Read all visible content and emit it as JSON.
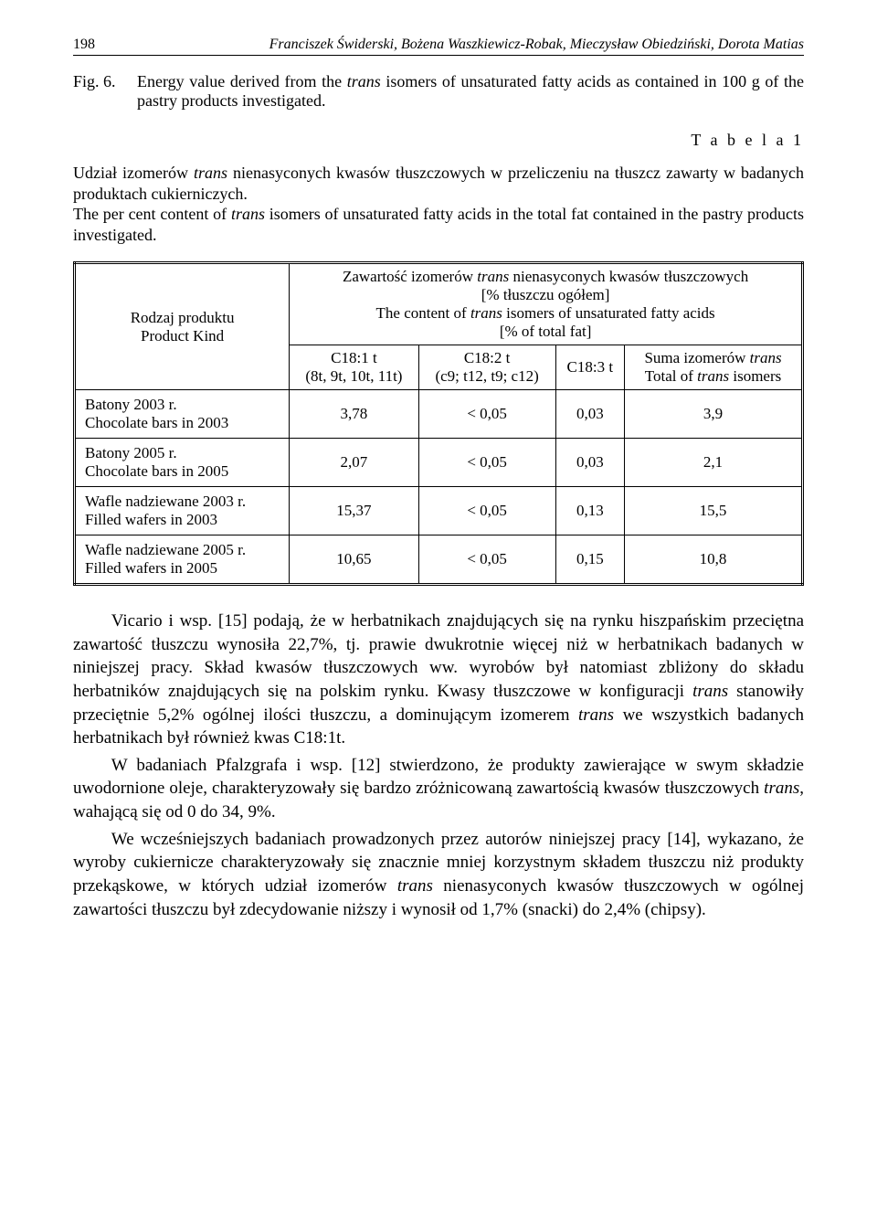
{
  "header": {
    "page_number": "198",
    "authors": "Franciszek Świderski, Bożena Waszkiewicz-Robak, Mieczysław Obiedziński, Dorota Matias"
  },
  "figure": {
    "label": "Fig. 6.",
    "text_before": "Energy value derived from the ",
    "text_ital1": "trans",
    "text_after": " isomers of unsaturated fatty acids as contained in 100 g of the pastry products investigated."
  },
  "table_label": "T a b e l a  1",
  "caption": {
    "line1a": "Udział izomerów ",
    "line1_ital": "trans",
    "line1b": " nienasyconych kwasów tłuszczowych w przeliczeniu na tłuszcz zawarty w badanych produktach cukierniczych.",
    "line2a": "The per cent content of ",
    "line2_ital": "trans",
    "line2b": " isomers of unsaturated fatty acids in the total fat contained in the pastry products investigated."
  },
  "table": {
    "rowhead_pl": "Rodzaj produktu",
    "rowhead_en": "Product Kind",
    "super_head_pl_a": "Zawartość izomerów ",
    "super_head_pl_ital": "trans",
    "super_head_pl_b": " nienasyconych kwasów tłuszczowych",
    "super_head_pl_unit": "[% tłuszczu ogółem]",
    "super_head_en_a": "The content of ",
    "super_head_en_ital": "trans",
    "super_head_en_b": " isomers of unsaturated fatty acids",
    "super_head_en_unit": "[% of total fat]",
    "col1_top": "C18:1 t",
    "col1_bot": "(8t, 9t, 10t, 11t)",
    "col2_top": "C18:2 t",
    "col2_bot": "(c9; t12, t9; c12)",
    "col3": "C18:3 t",
    "col4_pl": "Suma izomerów ",
    "col4_ital1": "trans",
    "col4_en": "Total of ",
    "col4_ital2": "trans",
    "col4_en2": " isomers",
    "rows": [
      {
        "pl": "Batony 2003 r.",
        "en": "Chocolate bars in 2003",
        "c1": "3,78",
        "c2": "< 0,05",
        "c3": "0,03",
        "c4": "3,9"
      },
      {
        "pl": "Batony 2005 r.",
        "en": "Chocolate bars  in 2005",
        "c1": "2,07",
        "c2": "< 0,05",
        "c3": "0,03",
        "c4": "2,1"
      },
      {
        "pl": "Wafle nadziewane 2003 r.",
        "en": "Filled wafers in 2003",
        "c1": "15,37",
        "c2": "< 0,05",
        "c3": "0,13",
        "c4": "15,5"
      },
      {
        "pl": "Wafle nadziewane 2005 r.",
        "en": "Filled wafers in 2005",
        "c1": "10,65",
        "c2": "< 0,05",
        "c3": "0,15",
        "c4": "10,8"
      }
    ]
  },
  "paragraphs": {
    "p1_a": "Vicario i wsp. [15] podają, że w herbatnikach znajdujących się na rynku hiszpańskim przeciętna zawartość tłuszczu wynosiła 22,7%, tj. prawie dwukrotnie więcej niż w herbatnikach badanych w niniejszej pracy. Skład kwasów tłuszczowych ww. wyrobów był natomiast zbliżony do składu herbatników znajdujących się na polskim rynku. Kwasy tłuszczowe w konfiguracji ",
    "p1_ital1": "trans",
    "p1_b": " stanowiły przeciętnie 5,2% ogólnej ilości tłuszczu, a dominującym izomerem ",
    "p1_ital2": "trans",
    "p1_c": " we wszystkich badanych herbatnikach był również kwas C18:1t.",
    "p2_a": "W badaniach Pfalzgrafa i wsp. [12] stwierdzono, że produkty zawierające w swym składzie uwodornione oleje, charakteryzowały się bardzo zróżnicowaną zawartością kwasów tłuszczowych ",
    "p2_ital": "trans",
    "p2_b": ", wahającą się od 0 do 34, 9%.",
    "p3_a": "We wcześniejszych badaniach prowadzonych przez autorów niniejszej pracy [14], wykazano, że wyroby cukiernicze charakteryzowały się znacznie mniej korzystnym składem tłuszczu niż produkty przekąskowe, w których udział izomerów ",
    "p3_ital1": "trans",
    "p3_b": " nienasyconych kwasów tłuszczowych w ogólnej zawartości tłuszczu był zdecydowanie niższy i wynosił od 1,7% (snacki) do 2,4% (chipsy)."
  }
}
